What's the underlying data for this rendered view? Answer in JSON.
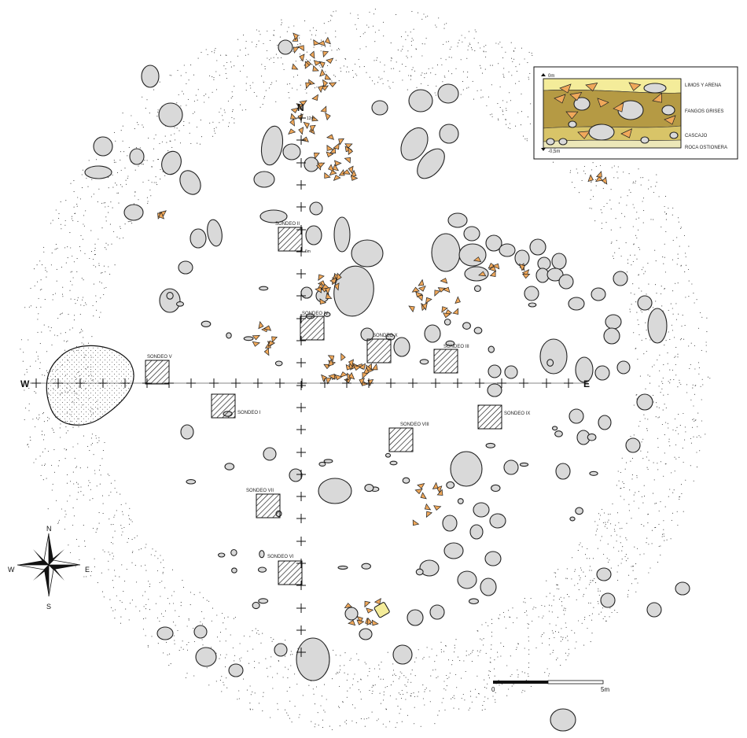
{
  "cardinals": {
    "north": "N",
    "west": "W",
    "east": "E"
  },
  "grid_marks": {
    "top": "12m",
    "mid": "6m"
  },
  "sondeos": [
    {
      "id": "sondeo-i",
      "label": "SONDEO I"
    },
    {
      "id": "sondeo-ii",
      "label": "SONDEO II"
    },
    {
      "id": "sondeo-iii",
      "label": "SONDEO III"
    },
    {
      "id": "sondeo-iv",
      "label": "SONDEO IV"
    },
    {
      "id": "sondeo-v",
      "label": "SONDEO V"
    },
    {
      "id": "sondeo-vi",
      "label": "SONDEO VI"
    },
    {
      "id": "sondeo-vii",
      "label": "SONDEO VII"
    },
    {
      "id": "sondeo-viii",
      "label": "SONDEO VIII"
    },
    {
      "id": "sondeo-ix",
      "label": "SONDEO IX"
    },
    {
      "id": "sondeo-x",
      "label": "SONDEO X"
    }
  ],
  "stratigraphy": {
    "top_depth": "0m",
    "bottom_depth": "-0,5m",
    "layers": [
      {
        "label": "LIMOS Y ARENA",
        "color": "#f4ec9a"
      },
      {
        "label": "FANGOS GRISES",
        "color": "#b59a44"
      },
      {
        "label": "CASCAJO",
        "color": "#d8c468"
      },
      {
        "label": "ROCA OSTIONERA",
        "color": "#ece7b8"
      }
    ]
  },
  "compass": {
    "n": "N",
    "s": "S",
    "e": "E",
    "w": "W"
  },
  "scale": {
    "start": "0",
    "end": "5m"
  },
  "colors": {
    "stone": "#d9d9d9",
    "sherd": "#f0a85a",
    "dots": "#333333",
    "sand_patch": "#efefef"
  }
}
